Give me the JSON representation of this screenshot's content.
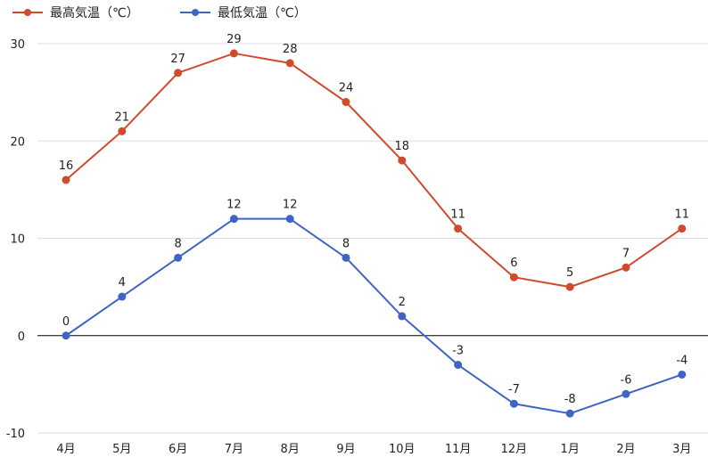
{
  "chart_data": {
    "type": "line",
    "categories": [
      "4月",
      "5月",
      "6月",
      "7月",
      "8月",
      "9月",
      "10月",
      "11月",
      "12月",
      "1月",
      "2月",
      "3月"
    ],
    "series": [
      {
        "name": "最高気温（℃）",
        "color": "#d04a2c",
        "values": [
          16,
          21,
          27,
          29,
          28,
          24,
          18,
          11,
          6,
          5,
          7,
          11
        ]
      },
      {
        "name": "最低気温（℃）",
        "color": "#3f64c6",
        "values": [
          0,
          4,
          8,
          12,
          12,
          8,
          2,
          -3,
          -7,
          -8,
          -6,
          -4
        ]
      }
    ],
    "y_ticks": [
      "30",
      "20",
      "10",
      "0",
      "-10"
    ],
    "ylim": [
      -10,
      30
    ],
    "grid": true,
    "legend_position": "top-left",
    "zero_line_color": "#000000",
    "grid_color": "#dddddd"
  }
}
